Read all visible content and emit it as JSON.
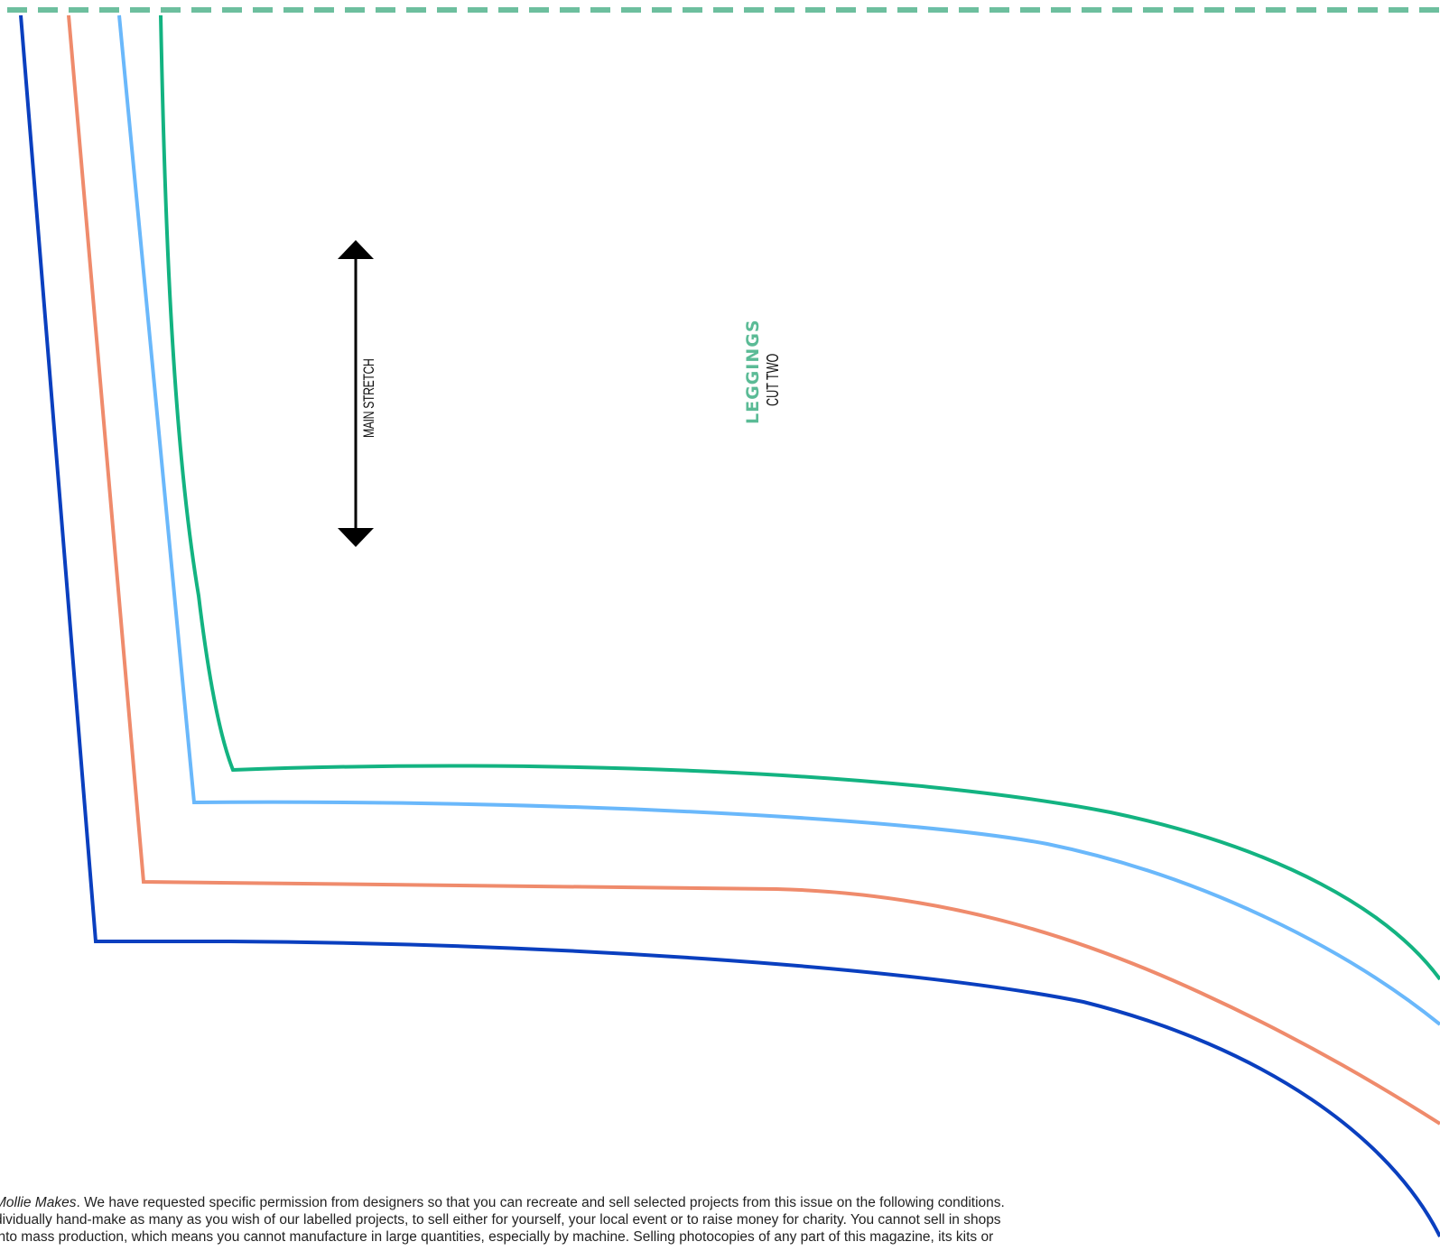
{
  "grain_line": {
    "label": "MAIN STRETCH"
  },
  "pattern_piece": {
    "title": "LEGGINGS",
    "subtitle": "CUT TWO"
  },
  "colors": {
    "fold_line": "#6dbf9e",
    "size_1": "#0a3fbf",
    "size_2": "#ef8b6c",
    "size_3": "#6ab8fb",
    "size_4": "#13b381",
    "title": "#5bbb96",
    "arrow": "#000000"
  },
  "disclaimer": {
    "line1_em": "Mollie Makes",
    "line1_rest": ". We have requested specific permission from designers so that you can recreate and sell selected projects from this issue on the following conditions.",
    "line2": "dividually hand-make as many as you wish of our labelled projects, to sell either for yourself, your local event or to raise money for charity. You cannot sell in shops",
    "line3": " into mass production, which means you cannot manufacture in large quantities, especially by machine. Selling photocopies of any part of this magazine, its kits or"
  }
}
